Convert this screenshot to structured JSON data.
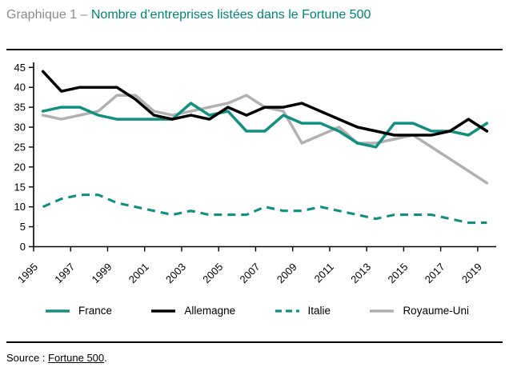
{
  "title": {
    "prefix": "Graphique 1 – ",
    "main": "Nombre d’entreprises listées dans le Fortune 500"
  },
  "source": {
    "label": "Source : ",
    "link": "Fortune 500",
    "suffix": "."
  },
  "colors": {
    "accent_teal": "#12907f",
    "title_teal": "#00847a",
    "title_gray": "#8c8c8c",
    "uk_gray": "#b1b1b1",
    "black": "#000000"
  },
  "chart_data": {
    "type": "line",
    "title": "Nombre d’entreprises listées dans le Fortune 500",
    "x": [
      1995,
      1996,
      1997,
      1998,
      1999,
      2000,
      2001,
      2002,
      2003,
      2004,
      2005,
      2006,
      2007,
      2008,
      2009,
      2010,
      2011,
      2012,
      2013,
      2014,
      2015,
      2016,
      2017,
      2018,
      2019
    ],
    "x_tick_labels": [
      "1995",
      "1997",
      "1999",
      "2001",
      "2003",
      "2005",
      "2007",
      "2009",
      "2011",
      "2013",
      "2015",
      "2017",
      "2019"
    ],
    "xlabel": "",
    "ylabel": "",
    "ylim": [
      0,
      45
    ],
    "ytick_step": 5,
    "grid": false,
    "legend_position": "bottom",
    "series": [
      {
        "name": "France",
        "color": "#12907f",
        "dash": "solid",
        "values": [
          34,
          35,
          35,
          33,
          32,
          32,
          32,
          32,
          36,
          33,
          34,
          29,
          29,
          33,
          31,
          31,
          29,
          26,
          25,
          31,
          31,
          29,
          29,
          28,
          31
        ]
      },
      {
        "name": "Allemagne",
        "color": "#000000",
        "dash": "solid",
        "values": [
          44,
          39,
          40,
          40,
          40,
          37,
          33,
          32,
          33,
          32,
          35,
          33,
          35,
          35,
          36,
          34,
          32,
          30,
          29,
          28,
          28,
          28,
          29,
          32,
          29
        ]
      },
      {
        "name": "Italie",
        "color": "#12907f",
        "dash": "dashed",
        "values": [
          10,
          12,
          13,
          13,
          11,
          10,
          9,
          8,
          9,
          8,
          8,
          8,
          10,
          9,
          9,
          10,
          9,
          8,
          7,
          8,
          8,
          8,
          7,
          6,
          6
        ]
      },
      {
        "name": "Royaume-Uni",
        "color": "#b1b1b1",
        "dash": "solid",
        "values": [
          33,
          32,
          33,
          34,
          38,
          38,
          34,
          33,
          34,
          35,
          36,
          38,
          35,
          34,
          26,
          28,
          30,
          26,
          26,
          27,
          28,
          25,
          22,
          19,
          16
        ]
      }
    ]
  }
}
